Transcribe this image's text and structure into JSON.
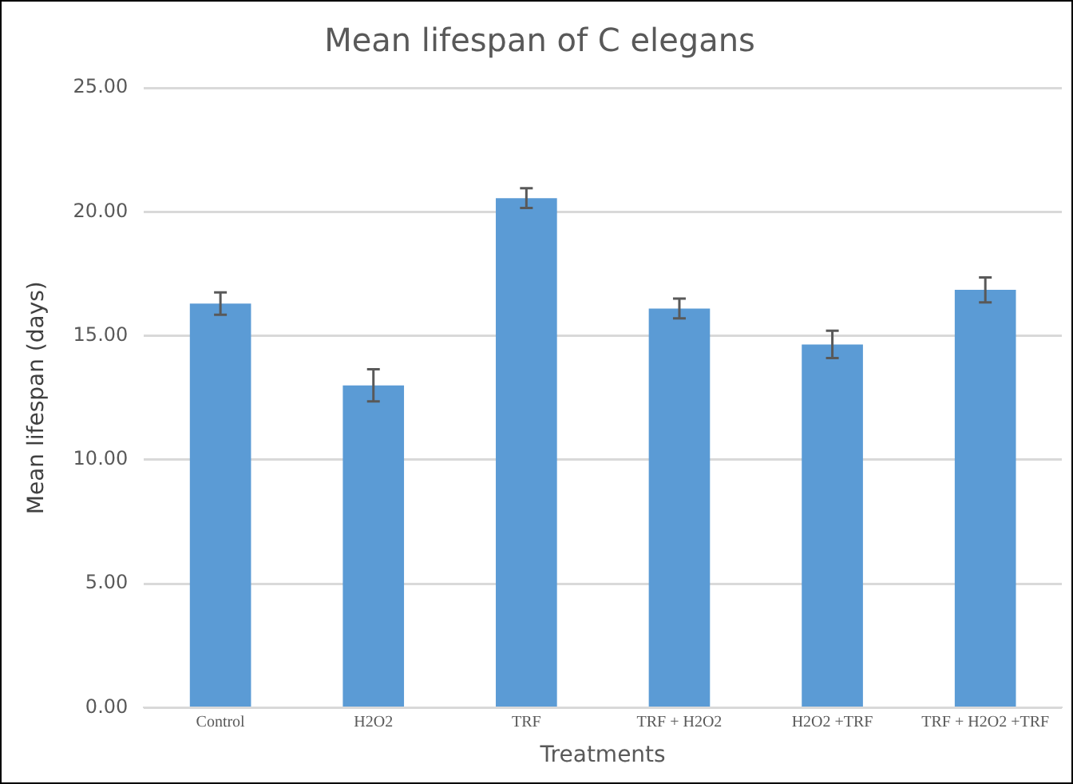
{
  "chart_data": {
    "type": "bar",
    "title": "Mean lifespan of C elegans",
    "xlabel": "Treatments",
    "ylabel": "Mean lifespan (days)",
    "categories": [
      "Control",
      "H2O2",
      "TRF",
      "TRF + H2O2",
      "H2O2 +TRF",
      "TRF + H2O2 +TRF"
    ],
    "values": [
      16.3,
      13.0,
      20.55,
      16.1,
      14.65,
      16.85
    ],
    "errors": [
      0.45,
      0.65,
      0.4,
      0.4,
      0.55,
      0.5
    ],
    "color": "#5b9bd5",
    "ylim": [
      0,
      25
    ],
    "yticks": [
      {
        "value": 0,
        "label": "0.00"
      },
      {
        "value": 5,
        "label": "5.00"
      },
      {
        "value": 10,
        "label": "10.00"
      },
      {
        "value": 15,
        "label": "15.00"
      },
      {
        "value": 20,
        "label": "20.00"
      },
      {
        "value": 25,
        "label": "25.00"
      }
    ],
    "grid": "y"
  }
}
